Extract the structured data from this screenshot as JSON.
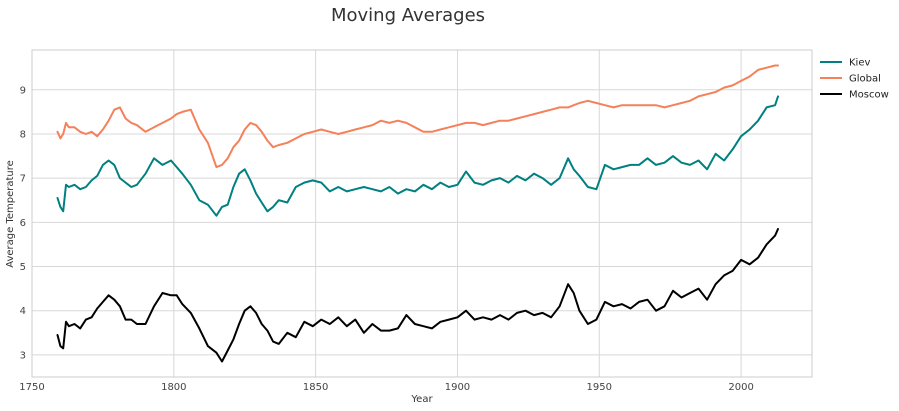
{
  "chart_data": {
    "type": "line",
    "title": "Moving Averages",
    "xlabel": "Year",
    "ylabel": "Average Temperature",
    "xlim": [
      1750,
      2025
    ],
    "ylim": [
      2.5,
      9.9
    ],
    "xticks": [
      1750,
      1800,
      1850,
      1900,
      1950,
      2000
    ],
    "yticks": [
      3,
      4,
      5,
      6,
      7,
      8,
      9
    ],
    "grid": true,
    "legend_position": "outside-top-right",
    "series": [
      {
        "name": "Kiev",
        "color": "#008080",
        "x": [
          1759,
          1760,
          1761,
          1762,
          1763,
          1765,
          1767,
          1769,
          1771,
          1773,
          1775,
          1777,
          1779,
          1781,
          1783,
          1785,
          1787,
          1790,
          1793,
          1796,
          1799,
          1801,
          1803,
          1806,
          1809,
          1812,
          1815,
          1817,
          1819,
          1821,
          1823,
          1825,
          1827,
          1829,
          1831,
          1833,
          1835,
          1837,
          1840,
          1843,
          1846,
          1849,
          1852,
          1855,
          1858,
          1861,
          1864,
          1867,
          1870,
          1873,
          1876,
          1879,
          1882,
          1885,
          1888,
          1891,
          1894,
          1897,
          1900,
          1903,
          1906,
          1909,
          1912,
          1915,
          1918,
          1921,
          1924,
          1927,
          1930,
          1933,
          1936,
          1939,
          1941,
          1943,
          1946,
          1949,
          1952,
          1955,
          1958,
          1961,
          1964,
          1967,
          1970,
          1973,
          1976,
          1979,
          1982,
          1985,
          1988,
          1991,
          1994,
          1997,
          2000,
          2003,
          2006,
          2009,
          2012,
          2013
        ],
        "values": [
          6.55,
          6.35,
          6.25,
          6.85,
          6.8,
          6.85,
          6.75,
          6.8,
          6.95,
          7.05,
          7.3,
          7.4,
          7.3,
          7.0,
          6.9,
          6.8,
          6.85,
          7.1,
          7.45,
          7.3,
          7.4,
          7.25,
          7.1,
          6.85,
          6.5,
          6.4,
          6.15,
          6.35,
          6.4,
          6.8,
          7.1,
          7.2,
          6.95,
          6.65,
          6.45,
          6.25,
          6.35,
          6.5,
          6.45,
          6.8,
          6.9,
          6.95,
          6.9,
          6.7,
          6.8,
          6.7,
          6.75,
          6.8,
          6.75,
          6.7,
          6.8,
          6.65,
          6.75,
          6.7,
          6.85,
          6.75,
          6.9,
          6.8,
          6.85,
          7.15,
          6.9,
          6.85,
          6.95,
          7.0,
          6.9,
          7.05,
          6.95,
          7.1,
          7.0,
          6.85,
          7.0,
          7.45,
          7.2,
          7.05,
          6.8,
          6.75,
          7.3,
          7.2,
          7.25,
          7.3,
          7.3,
          7.45,
          7.3,
          7.35,
          7.5,
          7.35,
          7.3,
          7.4,
          7.2,
          7.55,
          7.4,
          7.65,
          7.95,
          8.1,
          8.3,
          8.6,
          8.65,
          8.85
        ]
      },
      {
        "name": "Global",
        "color": "#f4815a",
        "x": [
          1759,
          1760,
          1761,
          1762,
          1763,
          1765,
          1767,
          1769,
          1771,
          1773,
          1775,
          1777,
          1779,
          1781,
          1783,
          1785,
          1787,
          1790,
          1793,
          1796,
          1799,
          1801,
          1803,
          1806,
          1809,
          1812,
          1815,
          1817,
          1819,
          1821,
          1823,
          1825,
          1827,
          1829,
          1831,
          1833,
          1835,
          1837,
          1840,
          1843,
          1846,
          1849,
          1852,
          1855,
          1858,
          1861,
          1864,
          1867,
          1870,
          1873,
          1876,
          1879,
          1882,
          1885,
          1888,
          1891,
          1894,
          1897,
          1900,
          1903,
          1906,
          1909,
          1912,
          1915,
          1918,
          1921,
          1924,
          1927,
          1930,
          1933,
          1936,
          1939,
          1941,
          1943,
          1946,
          1949,
          1952,
          1955,
          1958,
          1961,
          1964,
          1967,
          1970,
          1973,
          1976,
          1979,
          1982,
          1985,
          1988,
          1991,
          1994,
          1997,
          2000,
          2003,
          2006,
          2009,
          2012,
          2013
        ],
        "values": [
          8.05,
          7.9,
          8.0,
          8.25,
          8.15,
          8.15,
          8.05,
          8.0,
          8.05,
          7.95,
          8.1,
          8.3,
          8.55,
          8.6,
          8.35,
          8.25,
          8.2,
          8.05,
          8.15,
          8.25,
          8.35,
          8.45,
          8.5,
          8.55,
          8.1,
          7.8,
          7.25,
          7.3,
          7.45,
          7.7,
          7.85,
          8.1,
          8.25,
          8.2,
          8.05,
          7.85,
          7.7,
          7.75,
          7.8,
          7.9,
          8.0,
          8.05,
          8.1,
          8.05,
          8.0,
          8.05,
          8.1,
          8.15,
          8.2,
          8.3,
          8.25,
          8.3,
          8.25,
          8.15,
          8.05,
          8.05,
          8.1,
          8.15,
          8.2,
          8.25,
          8.25,
          8.2,
          8.25,
          8.3,
          8.3,
          8.35,
          8.4,
          8.45,
          8.5,
          8.55,
          8.6,
          8.6,
          8.65,
          8.7,
          8.75,
          8.7,
          8.65,
          8.6,
          8.65,
          8.65,
          8.65,
          8.65,
          8.65,
          8.6,
          8.65,
          8.7,
          8.75,
          8.85,
          8.9,
          8.95,
          9.05,
          9.1,
          9.2,
          9.3,
          9.45,
          9.5,
          9.55,
          9.55
        ]
      },
      {
        "name": "Moscow",
        "color": "#000000",
        "x": [
          1759,
          1760,
          1761,
          1762,
          1763,
          1765,
          1767,
          1769,
          1771,
          1773,
          1775,
          1777,
          1779,
          1781,
          1783,
          1785,
          1787,
          1790,
          1793,
          1796,
          1799,
          1801,
          1803,
          1806,
          1809,
          1812,
          1815,
          1817,
          1819,
          1821,
          1823,
          1825,
          1827,
          1829,
          1831,
          1833,
          1835,
          1837,
          1840,
          1843,
          1846,
          1849,
          1852,
          1855,
          1858,
          1861,
          1864,
          1867,
          1870,
          1873,
          1876,
          1879,
          1882,
          1885,
          1888,
          1891,
          1894,
          1897,
          1900,
          1903,
          1906,
          1909,
          1912,
          1915,
          1918,
          1921,
          1924,
          1927,
          1930,
          1933,
          1936,
          1939,
          1941,
          1943,
          1946,
          1949,
          1952,
          1955,
          1958,
          1961,
          1964,
          1967,
          1970,
          1973,
          1976,
          1979,
          1982,
          1985,
          1988,
          1991,
          1994,
          1997,
          2000,
          2003,
          2006,
          2009,
          2012,
          2013
        ],
        "values": [
          3.45,
          3.2,
          3.15,
          3.75,
          3.65,
          3.7,
          3.6,
          3.8,
          3.85,
          4.05,
          4.2,
          4.35,
          4.25,
          4.1,
          3.8,
          3.8,
          3.7,
          3.7,
          4.1,
          4.4,
          4.35,
          4.35,
          4.15,
          3.95,
          3.6,
          3.2,
          3.05,
          2.85,
          3.1,
          3.35,
          3.7,
          4.0,
          4.1,
          3.95,
          3.7,
          3.55,
          3.3,
          3.25,
          3.5,
          3.4,
          3.75,
          3.65,
          3.8,
          3.7,
          3.85,
          3.65,
          3.8,
          3.5,
          3.7,
          3.55,
          3.55,
          3.6,
          3.9,
          3.7,
          3.65,
          3.6,
          3.75,
          3.8,
          3.85,
          4.0,
          3.8,
          3.85,
          3.8,
          3.9,
          3.8,
          3.95,
          4.0,
          3.9,
          3.95,
          3.85,
          4.1,
          4.6,
          4.4,
          4.0,
          3.7,
          3.8,
          4.2,
          4.1,
          4.15,
          4.05,
          4.2,
          4.25,
          4.0,
          4.1,
          4.45,
          4.3,
          4.4,
          4.5,
          4.25,
          4.6,
          4.8,
          4.9,
          5.15,
          5.05,
          5.2,
          5.5,
          5.7,
          5.85
        ]
      }
    ]
  }
}
